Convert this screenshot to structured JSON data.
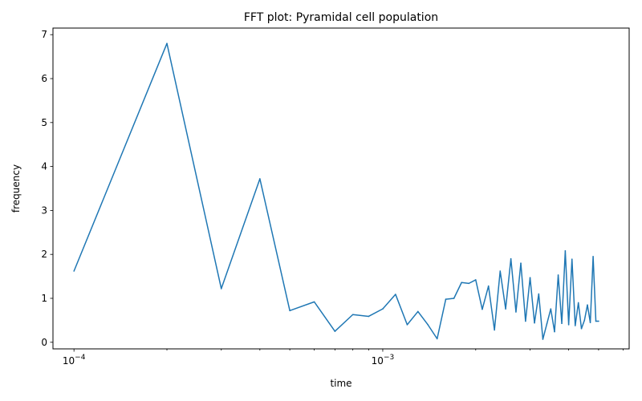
{
  "chart_data": {
    "type": "line",
    "title": "FFT plot: Pyramidal cell population",
    "xlabel": "time",
    "ylabel": "frequency",
    "x_scale": "log",
    "xlim": [
      8.55e-05,
      0.00628
    ],
    "ylim": [
      -0.15,
      7.15
    ],
    "grid": false,
    "legend": "none",
    "line_color": "#1f77b4",
    "x_ticks_major": [
      {
        "value": 0.0001,
        "base": "10",
        "exponent": "−4"
      },
      {
        "value": 0.001,
        "base": "10",
        "exponent": "−3"
      }
    ],
    "x_ticks_minor": [
      0.0002,
      0.0003,
      0.0004,
      0.0005,
      0.0006,
      0.0007,
      0.0008,
      0.0009,
      0.002,
      0.003,
      0.004,
      0.005,
      0.006
    ],
    "y_ticks": [
      {
        "value": 0,
        "label": "0"
      },
      {
        "value": 1,
        "label": "1"
      },
      {
        "value": 2,
        "label": "2"
      },
      {
        "value": 3,
        "label": "3"
      },
      {
        "value": 4,
        "label": "4"
      },
      {
        "value": 5,
        "label": "5"
      },
      {
        "value": 6,
        "label": "6"
      },
      {
        "value": 7,
        "label": "7"
      }
    ],
    "series": [
      {
        "x": [
          0.0001,
          0.0002,
          0.0003,
          0.0004,
          0.0005,
          0.0006,
          0.0007,
          0.0008,
          0.0009,
          0.001,
          0.0011,
          0.0012,
          0.0013,
          0.0014,
          0.0015,
          0.0016,
          0.0017,
          0.0018,
          0.0019,
          0.002,
          0.0021,
          0.0022,
          0.0023,
          0.0024,
          0.0025,
          0.0026,
          0.0027,
          0.0028,
          0.0029,
          0.003,
          0.0031,
          0.0032,
          0.0033,
          0.0034,
          0.0035,
          0.0036,
          0.0037,
          0.0038,
          0.0039,
          0.004,
          0.0041,
          0.0042,
          0.0043,
          0.0044,
          0.0045,
          0.0046,
          0.0047,
          0.0048,
          0.0049,
          0.005
        ],
        "y": [
          1.62,
          6.8,
          1.22,
          3.72,
          0.72,
          0.92,
          0.25,
          0.63,
          0.59,
          0.76,
          1.09,
          0.4,
          0.7,
          0.4,
          0.08,
          0.98,
          1.0,
          1.36,
          1.34,
          1.42,
          0.75,
          1.28,
          0.28,
          1.62,
          0.76,
          1.9,
          0.69,
          1.8,
          0.48,
          1.47,
          0.44,
          1.1,
          0.07,
          0.42,
          0.76,
          0.24,
          1.53,
          0.43,
          2.08,
          0.4,
          1.89,
          0.38,
          0.9,
          0.31,
          0.5,
          0.85,
          0.45,
          1.95,
          0.48,
          0.48
        ]
      }
    ]
  }
}
